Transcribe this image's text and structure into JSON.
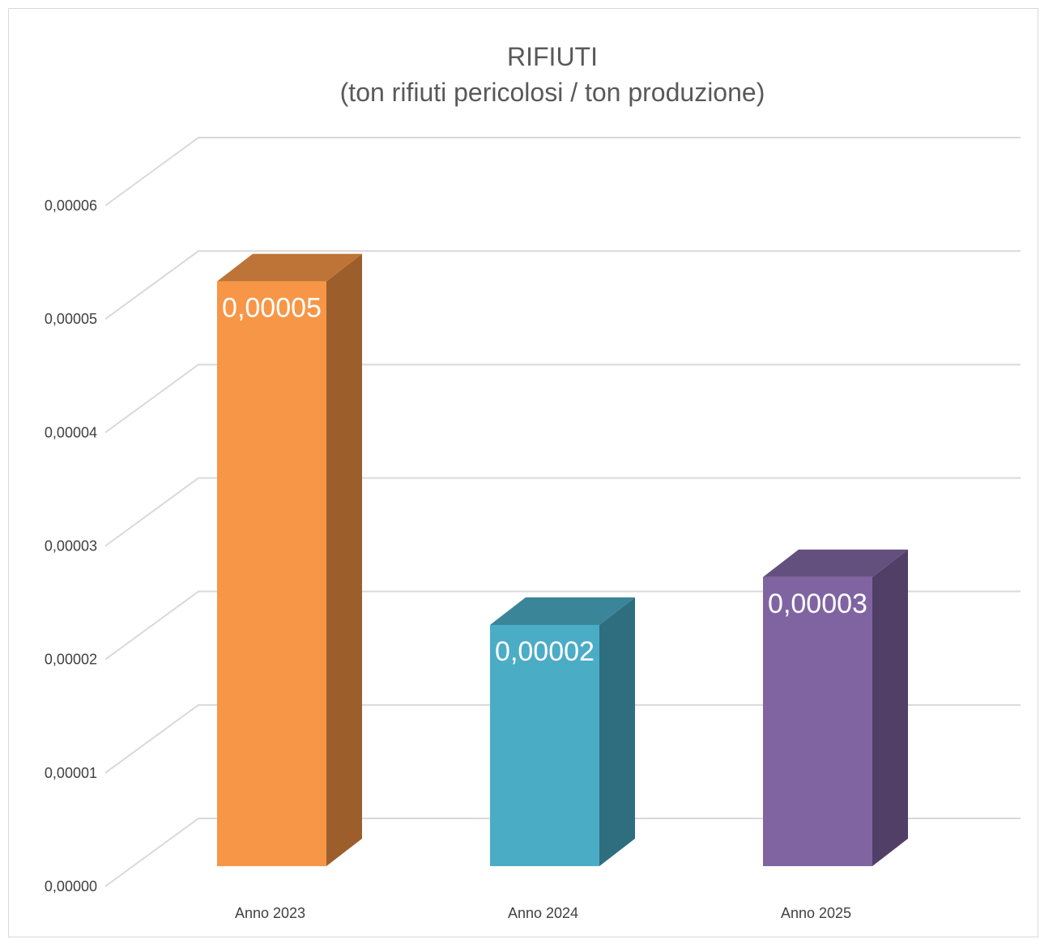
{
  "chart_data": {
    "type": "bar",
    "title_line1": "RIFIUTI",
    "title_line2": "(ton rifiuti pericolosi / ton produzione)",
    "categories": [
      "Anno 2023",
      "Anno 2024",
      "Anno 2025"
    ],
    "values": [
      5.26e-05,
      2.17e-05,
      2.6e-05
    ],
    "data_labels": [
      "0,00005",
      "0,00002",
      "0,00003"
    ],
    "y_ticks": [
      "0,00000",
      "0,00001",
      "0,00002",
      "0,00003",
      "0,00004",
      "0,00005",
      "0,00006"
    ],
    "ylim": [
      0,
      6e-05
    ],
    "three_d": true,
    "gridlines": true,
    "legend": "none",
    "colors": {
      "bars": [
        {
          "front": "#f79646",
          "side": "#9c5f2b",
          "top": "#bd7436"
        },
        {
          "front": "#4bacc6",
          "side": "#2e6e7f",
          "top": "#3a8598"
        },
        {
          "front": "#8064a2",
          "side": "#523f68",
          "top": "#63507e"
        }
      ],
      "grid": "#d9d9d9",
      "text": "#404040",
      "title": "#595959"
    }
  }
}
